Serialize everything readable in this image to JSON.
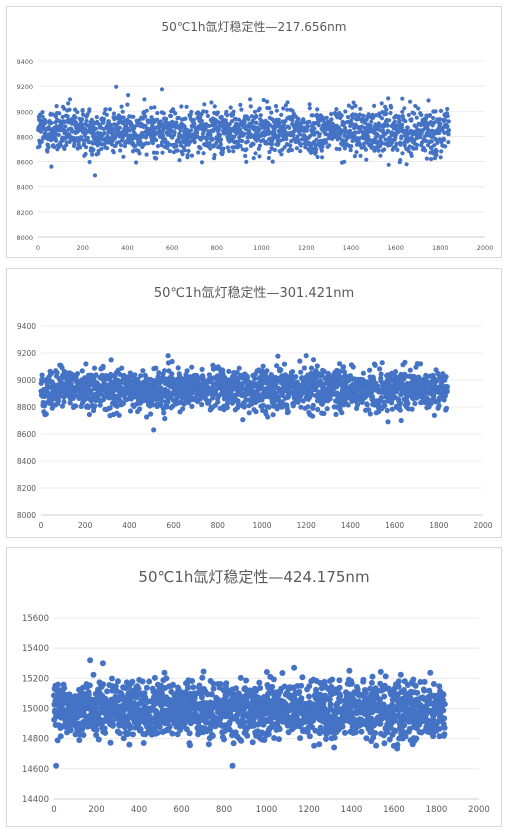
{
  "chart_data": [
    {
      "type": "scatter",
      "title": "50℃1h氙灯稳定性—217.656nm",
      "xlabel": "",
      "ylabel": "",
      "xlim": [
        0,
        2000
      ],
      "ylim": [
        8000,
        9400
      ],
      "xticks": [
        0,
        200,
        400,
        600,
        800,
        1000,
        1200,
        1400,
        1600,
        1800,
        2000
      ],
      "yticks": [
        8000,
        8200,
        8400,
        8600,
        8800,
        9000,
        9200,
        9400
      ],
      "grid": "horizontal",
      "legend": "none",
      "color": "#4472c4",
      "n_points": 1840,
      "mean": 8840,
      "spread": 95,
      "outliers": [
        {
          "x": 350,
          "y": 9195
        },
        {
          "x": 555,
          "y": 9175
        },
        {
          "x": 255,
          "y": 8490
        },
        {
          "x": 60,
          "y": 8560
        },
        {
          "x": 1630,
          "y": 9100
        },
        {
          "x": 1010,
          "y": 9090
        }
      ]
    },
    {
      "type": "scatter",
      "title": "50℃1h氙灯稳定性—301.421nm",
      "xlabel": "",
      "ylabel": "",
      "xlim": [
        0,
        2000
      ],
      "ylim": [
        8000,
        9400
      ],
      "xticks": [
        0,
        200,
        400,
        600,
        800,
        1000,
        1200,
        1400,
        1600,
        1800,
        2000
      ],
      "yticks": [
        8000,
        8200,
        8400,
        8600,
        8800,
        9000,
        9200,
        9400
      ],
      "grid": "horizontal",
      "legend": "none",
      "color": "#4472c4",
      "n_points": 1840,
      "mean": 8930,
      "spread": 80,
      "outliers": [
        {
          "x": 510,
          "y": 8630
        },
        {
          "x": 1200,
          "y": 9180
        },
        {
          "x": 575,
          "y": 9180
        },
        {
          "x": 1570,
          "y": 8690
        },
        {
          "x": 1630,
          "y": 8700
        }
      ]
    },
    {
      "type": "scatter",
      "title": "50℃1h氙灯稳定性—424.175nm",
      "xlabel": "",
      "ylabel": "",
      "xlim": [
        0,
        2000
      ],
      "ylim": [
        14400,
        15600
      ],
      "xticks": [
        0,
        200,
        400,
        600,
        800,
        1000,
        1200,
        1400,
        1600,
        1800,
        2000
      ],
      "yticks": [
        14400,
        14600,
        14800,
        15000,
        15200,
        15400,
        15600
      ],
      "grid": "horizontal",
      "legend": "none",
      "color": "#4472c4",
      "n_points": 1840,
      "mean": 14990,
      "spread": 95,
      "outliers": [
        {
          "x": 10,
          "y": 14620
        },
        {
          "x": 170,
          "y": 15320
        },
        {
          "x": 230,
          "y": 15300
        },
        {
          "x": 840,
          "y": 14620
        },
        {
          "x": 1130,
          "y": 15270
        },
        {
          "x": 1390,
          "y": 15250
        }
      ]
    }
  ]
}
